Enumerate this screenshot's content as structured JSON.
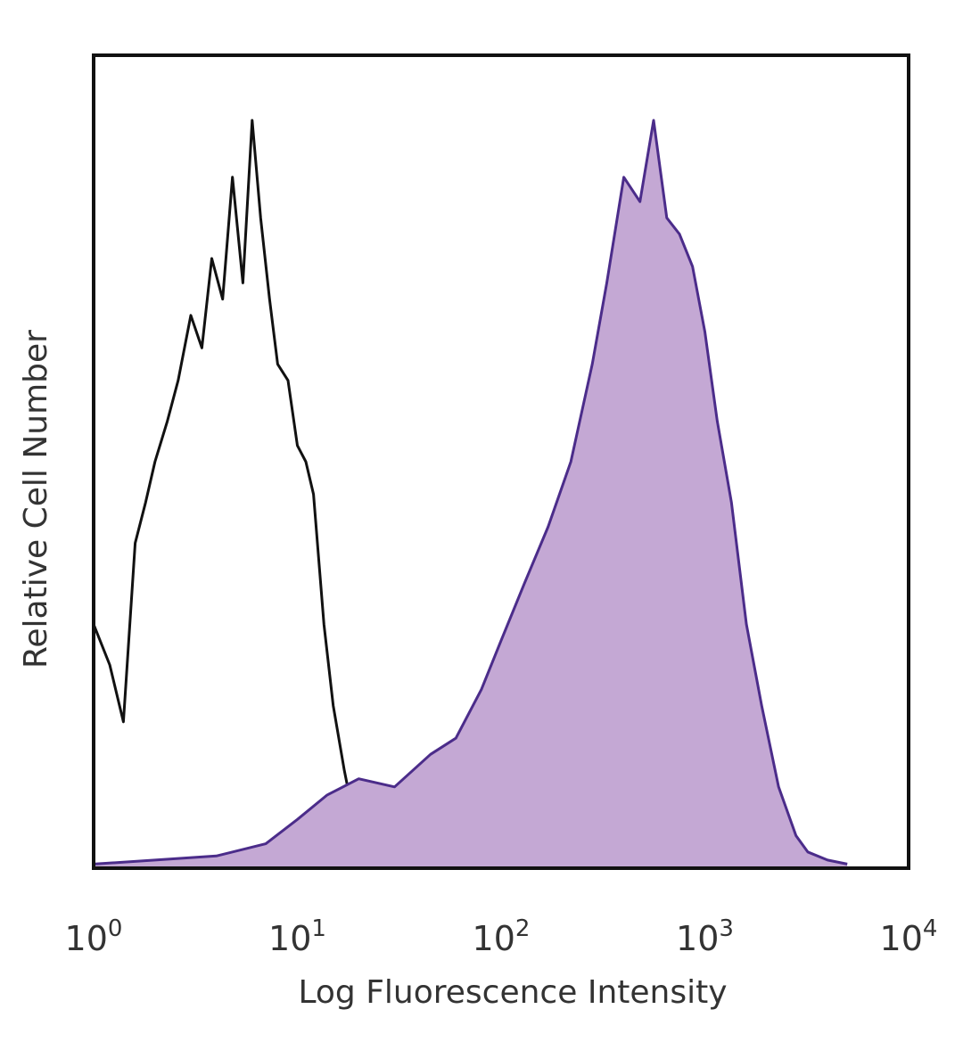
{
  "chart_data": {
    "type": "area",
    "xlabel": "Log Fluorescence Intensity",
    "ylabel": "Relative Cell Number",
    "x_scale": "log",
    "xlim": [
      1,
      10000
    ],
    "ylim": [
      0,
      100
    ],
    "grid": false,
    "legend": "none",
    "x_ticks": [
      {
        "base": "10",
        "exp": "0",
        "value": 1
      },
      {
        "base": "10",
        "exp": "1",
        "value": 10
      },
      {
        "base": "10",
        "exp": "2",
        "value": 100
      },
      {
        "base": "10",
        "exp": "3",
        "value": 1000
      },
      {
        "base": "10",
        "exp": "4",
        "value": 10000
      }
    ],
    "series": [
      {
        "style": "outline",
        "color": "#111111",
        "x": [
          1.0,
          1.2,
          1.4,
          1.6,
          1.8,
          2.0,
          2.3,
          2.6,
          3.0,
          3.4,
          3.8,
          4.3,
          4.8,
          5.4,
          6.0,
          6.6,
          7.3,
          8.0,
          9.0,
          10.0,
          11.0,
          12.0,
          13.5,
          15.0,
          17.0,
          19.0,
          21.0,
          23.0,
          25.0
        ],
        "y": [
          30,
          25,
          18,
          40,
          45,
          50,
          55,
          60,
          68,
          64,
          75,
          70,
          85,
          72,
          92,
          80,
          70,
          62,
          60,
          52,
          50,
          46,
          30,
          20,
          12,
          6,
          3,
          1,
          0
        ]
      },
      {
        "style": "filled",
        "color": "#4b2c8a",
        "fill": "#c4a8d4",
        "x": [
          1.0,
          2.0,
          4.0,
          7.0,
          10.0,
          14.0,
          20.0,
          30.0,
          45.0,
          60.0,
          80.0,
          100.0,
          130.0,
          170.0,
          220.0,
          280.0,
          330.0,
          400.0,
          480.0,
          560.0,
          650.0,
          750.0,
          870.0,
          1000.0,
          1150.0,
          1350.0,
          1600.0,
          1900.0,
          2300.0,
          2800.0,
          3200.0,
          4000.0,
          5000.0
        ],
        "y": [
          0.5,
          1,
          1.5,
          3,
          6,
          9,
          11,
          10,
          14,
          16,
          22,
          28,
          35,
          42,
          50,
          62,
          72,
          85,
          82,
          92,
          80,
          78,
          74,
          66,
          55,
          45,
          30,
          20,
          10,
          4,
          2,
          1,
          0.5
        ]
      }
    ]
  }
}
